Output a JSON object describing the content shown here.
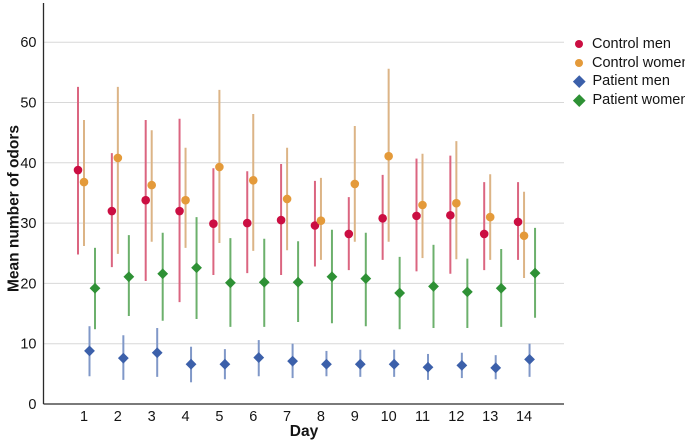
{
  "chart_data": {
    "type": "scatter",
    "title": "",
    "xlabel": "Day",
    "ylabel": "Mean number of odors",
    "ylim": [
      0,
      66
    ],
    "yticks": [
      0,
      10,
      20,
      30,
      40,
      50,
      60
    ],
    "x": [
      1,
      2,
      3,
      4,
      5,
      6,
      7,
      8,
      9,
      10,
      11,
      12,
      13,
      14
    ],
    "grid": "horizontal",
    "grid_color": "#d8d8d8",
    "axis_color": "#2a2a2a",
    "legend_position": "right",
    "series": [
      {
        "name": "Control men",
        "marker": "circle",
        "color": "#cb0e42",
        "line_color": "#db6580",
        "values": [
          38.8,
          32.0,
          33.8,
          32.0,
          29.9,
          30.0,
          30.5,
          29.6,
          28.2,
          30.8,
          31.2,
          31.3,
          28.2,
          30.2
        ],
        "err_low": [
          24.8,
          22.7,
          20.4,
          16.9,
          21.4,
          21.7,
          21.4,
          22.8,
          22.2,
          23.9,
          22.0,
          21.6,
          22.2,
          23.9
        ],
        "err_high": [
          52.6,
          41.6,
          47.1,
          47.3,
          39.1,
          38.6,
          39.8,
          37.0,
          34.3,
          38.0,
          40.7,
          41.2,
          36.8,
          36.8
        ]
      },
      {
        "name": "Control women",
        "marker": "circle",
        "color": "#e49a3a",
        "line_color": "#dcb486",
        "values": [
          36.8,
          40.8,
          36.3,
          33.8,
          39.3,
          37.1,
          34.0,
          30.4,
          36.5,
          41.1,
          33.0,
          33.3,
          31.0,
          27.9
        ],
        "err_low": [
          26.2,
          24.9,
          26.9,
          25.9,
          26.7,
          25.4,
          25.5,
          23.9,
          26.9,
          26.9,
          24.2,
          24.0,
          23.9,
          20.9
        ],
        "err_high": [
          47.1,
          52.6,
          45.4,
          42.5,
          52.1,
          48.1,
          42.5,
          37.5,
          46.1,
          55.6,
          41.5,
          43.6,
          38.1,
          35.2
        ]
      },
      {
        "name": "Patient men",
        "marker": "diamond",
        "color": "#3c60aa",
        "line_color": "#8098c8",
        "values": [
          8.8,
          7.6,
          8.5,
          6.6,
          6.6,
          7.7,
          7.1,
          6.6,
          6.6,
          6.6,
          6.1,
          6.4,
          6.0,
          7.4
        ],
        "err_low": [
          4.6,
          4.0,
          4.5,
          3.6,
          4.1,
          4.6,
          4.3,
          4.6,
          4.5,
          4.5,
          4.0,
          4.3,
          4.1,
          4.5
        ],
        "err_high": [
          12.9,
          11.4,
          12.6,
          9.5,
          9.1,
          10.6,
          10.0,
          8.8,
          9.0,
          9.0,
          8.3,
          8.5,
          8.1,
          10.0
        ]
      },
      {
        "name": "Patient women",
        "marker": "diamond",
        "color": "#2e9135",
        "line_color": "#6cb06c",
        "values": [
          19.2,
          21.1,
          21.6,
          22.6,
          20.1,
          20.2,
          20.2,
          21.1,
          20.8,
          18.4,
          19.5,
          18.6,
          19.2,
          21.7
        ],
        "err_low": [
          12.4,
          14.6,
          13.8,
          14.1,
          12.8,
          12.8,
          13.6,
          13.4,
          12.9,
          12.4,
          12.6,
          12.6,
          12.8,
          14.3
        ],
        "err_high": [
          25.9,
          28.0,
          28.4,
          31.0,
          27.5,
          27.4,
          27.0,
          28.9,
          28.4,
          24.4,
          26.4,
          24.1,
          25.7,
          29.2
        ]
      }
    ]
  }
}
